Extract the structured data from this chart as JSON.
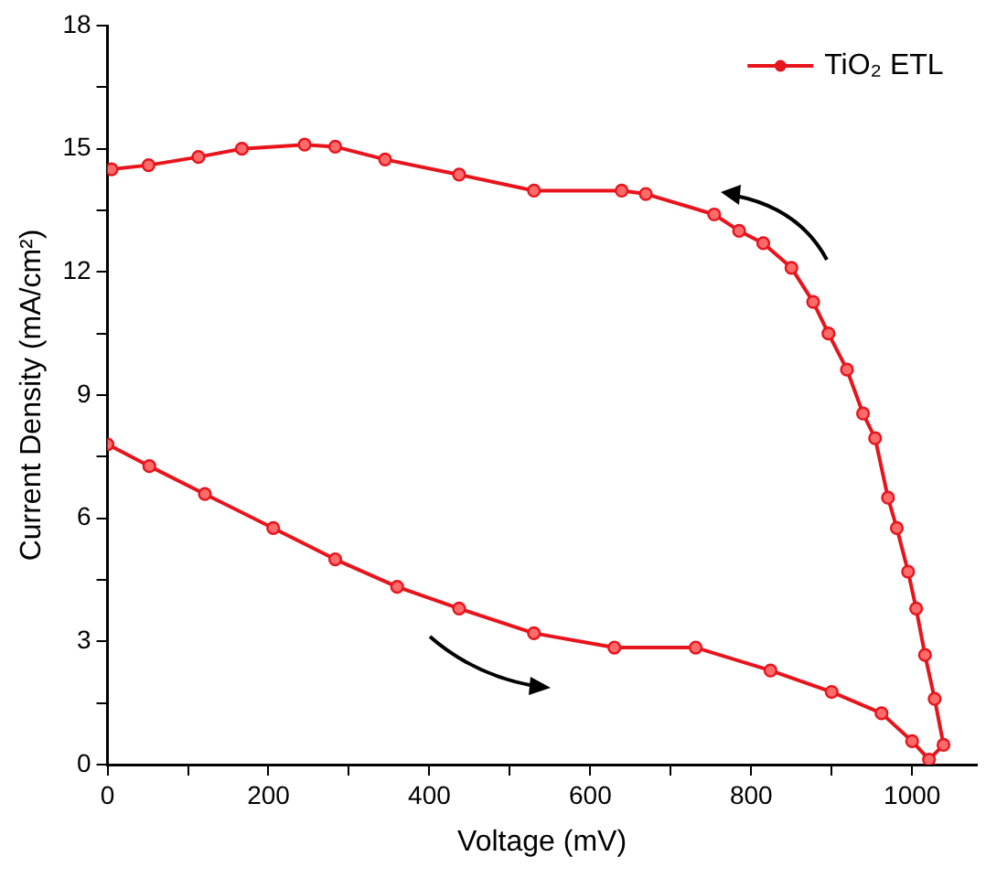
{
  "chart_data": {
    "type": "line",
    "xlabel": "Voltage (mV)",
    "ylabel": "Current Density (mA/cm²)",
    "xlim": [
      0,
      1080
    ],
    "ylim": [
      0,
      18
    ],
    "xticks": [
      0,
      {
        "value": 100,
        "label": null
      },
      200,
      {
        "value": 300,
        "label": null
      },
      400,
      {
        "value": 500,
        "label": null
      },
      600,
      {
        "value": 700,
        "label": null
      },
      800,
      {
        "value": 900,
        "label": null
      },
      1000
    ],
    "yticks": [
      0,
      {
        "value": 1.5,
        "label": null
      },
      3,
      {
        "value": 4.5,
        "label": null
      },
      6,
      {
        "value": 7.5,
        "label": null
      },
      9,
      {
        "value": 10.5,
        "label": null
      },
      12,
      {
        "value": 13.5,
        "label": null
      },
      15,
      {
        "value": 16.5,
        "label": null
      },
      18
    ],
    "grid": false,
    "legend": "top right",
    "marker": "circle",
    "line_style": "solid",
    "series": [
      {
        "name": "TiO₂ ETL",
        "color": "#e8141c",
        "x": [
          0,
          52,
          121,
          206,
          283,
          360,
          437,
          530,
          630,
          731,
          824,
          900,
          962,
          1000,
          1021,
          1039,
          1028,
          1016,
          1005,
          995,
          981,
          970,
          954,
          939,
          919,
          896,
          877,
          850,
          815,
          785,
          754,
          669,
          639,
          530,
          437,
          345,
          283,
          245,
          167,
          113,
          51,
          5
        ],
        "values": [
          7.8,
          7.27,
          6.59,
          5.76,
          5.0,
          4.33,
          3.8,
          3.2,
          2.85,
          2.85,
          2.29,
          1.77,
          1.25,
          0.57,
          0.12,
          0.48,
          1.6,
          2.67,
          3.8,
          4.7,
          5.76,
          6.5,
          7.95,
          8.55,
          9.62,
          10.5,
          11.27,
          12.1,
          12.7,
          13.0,
          13.4,
          13.9,
          13.98,
          13.98,
          14.37,
          14.74,
          15.05,
          15.1,
          15.0,
          14.8,
          14.6,
          14.5
        ]
      }
    ]
  }
}
